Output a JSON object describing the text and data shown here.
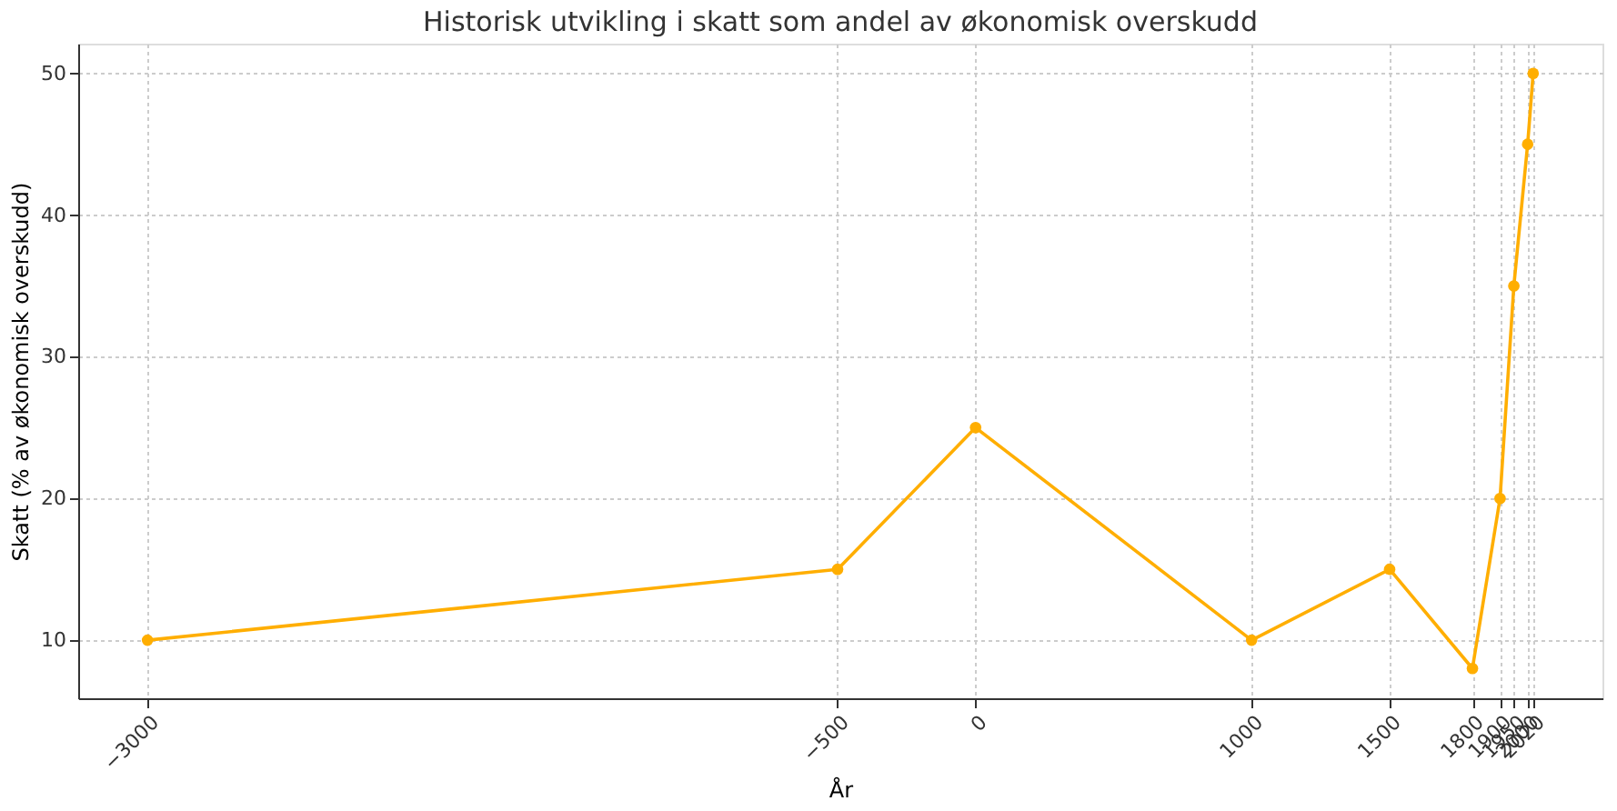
{
  "chart_data": {
    "type": "line",
    "title": "Historisk utvikling i skatt som andel av økonomisk overskudd",
    "xlabel": "År",
    "ylabel": "Skatt (% av økonomisk overskudd)",
    "x": [
      -3000,
      -500,
      0,
      1000,
      1500,
      1800,
      1900,
      1950,
      2000,
      2020
    ],
    "series": [
      {
        "color": "#ffae00",
        "values": [
          10,
          15,
          25,
          10,
          15,
          8,
          20,
          35,
          45,
          50
        ]
      }
    ],
    "xlim": [
      -3251,
      2271
    ],
    "ylim": [
      5.9,
      52.1
    ],
    "xticks": [
      {
        "value": -3000,
        "label": "−3000"
      },
      {
        "value": -500,
        "label": "−500"
      },
      0,
      1000,
      1500,
      1800,
      1900,
      1950,
      2000,
      2020
    ],
    "yticks": [
      10,
      20,
      30,
      40,
      50
    ],
    "grid": true,
    "marker": "circle",
    "line_style": "solid"
  }
}
